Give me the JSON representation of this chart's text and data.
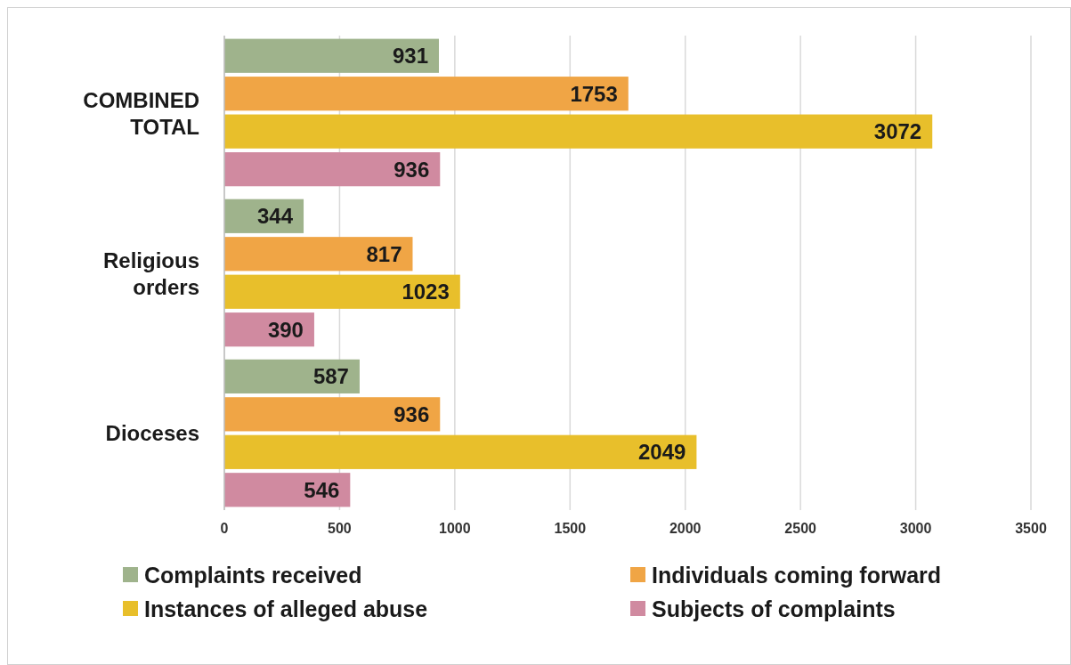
{
  "chart_data": {
    "type": "bar",
    "orientation": "horizontal",
    "categories": [
      "COMBINED TOTAL",
      "Religious orders",
      "Dioceses"
    ],
    "series": [
      {
        "name": "Complaints received",
        "color": "#9fb38c",
        "values": [
          931,
          344,
          587
        ]
      },
      {
        "name": "Individuals coming forward",
        "color": "#f0a545",
        "values": [
          1753,
          817,
          936
        ]
      },
      {
        "name": "Instances of alleged abuse",
        "color": "#e8bf2b",
        "values": [
          3072,
          1023,
          2049
        ]
      },
      {
        "name": "Subjects of complaints",
        "color": "#d08aa0",
        "values": [
          936,
          390,
          546
        ]
      }
    ],
    "xlim": [
      0,
      3500
    ],
    "xticks": [
      0,
      500,
      1000,
      1500,
      2000,
      2500,
      3000,
      3500
    ],
    "grid": "x",
    "data_labels": true,
    "legend": "bottom"
  }
}
